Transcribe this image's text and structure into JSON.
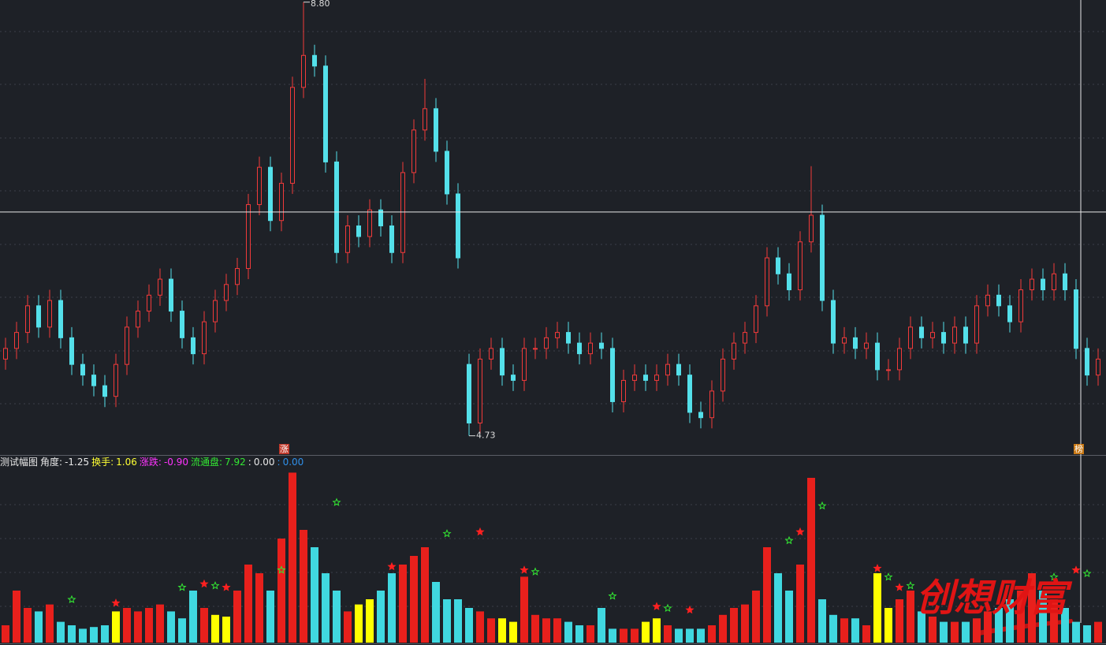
{
  "chart_data": [
    {
      "type": "candlestick",
      "open": [
        5.45,
        5.55,
        5.7,
        5.95,
        5.75,
        6.0,
        5.65,
        5.4,
        5.3,
        5.2,
        5.1,
        5.4,
        5.75,
        5.9,
        6.05,
        6.2,
        5.9,
        5.65,
        5.5,
        5.8,
        6.0,
        6.15,
        6.3,
        6.9,
        7.25,
        6.75,
        7.1,
        8.0,
        8.3,
        8.2,
        7.3,
        6.45,
        6.7,
        6.6,
        6.85,
        6.7,
        6.45,
        7.2,
        7.6,
        7.8,
        7.4,
        7.0,
        5.4,
        4.85,
        5.45,
        5.55,
        5.3,
        5.25,
        5.55,
        5.55,
        5.65,
        5.7,
        5.6,
        5.5,
        5.6,
        5.55,
        5.05,
        5.25,
        5.3,
        5.25,
        5.3,
        5.4,
        5.3,
        4.95,
        4.9,
        5.15,
        5.45,
        5.6,
        5.7,
        5.95,
        6.4,
        6.25,
        6.1,
        6.55,
        6.8,
        6.0,
        5.6,
        5.65,
        5.55,
        5.6,
        5.35,
        5.35,
        5.55,
        5.75,
        5.65,
        5.7,
        5.6,
        5.75,
        5.6,
        5.95,
        6.05,
        5.95,
        5.8,
        6.1,
        6.2,
        6.1,
        6.25,
        6.1,
        5.55,
        5.3
      ],
      "high": [
        5.65,
        5.8,
        6.05,
        6.05,
        6.1,
        6.1,
        5.75,
        5.5,
        5.4,
        5.3,
        5.5,
        5.85,
        6.0,
        6.15,
        6.3,
        6.3,
        6.0,
        5.75,
        5.9,
        6.1,
        6.25,
        6.4,
        7.0,
        7.35,
        7.35,
        7.2,
        8.1,
        8.8,
        8.4,
        8.3,
        7.4,
        6.8,
        6.8,
        6.95,
        6.95,
        6.8,
        7.3,
        7.7,
        8.08,
        7.9,
        7.5,
        7.1,
        5.5,
        5.55,
        5.65,
        5.65,
        5.4,
        5.65,
        5.65,
        5.75,
        5.8,
        5.8,
        5.7,
        5.7,
        5.7,
        5.65,
        5.35,
        5.4,
        5.4,
        5.4,
        5.5,
        5.5,
        5.4,
        5.05,
        5.25,
        5.55,
        5.7,
        5.8,
        6.05,
        6.5,
        6.5,
        6.35,
        6.65,
        7.26,
        6.9,
        6.1,
        5.75,
        5.75,
        5.7,
        5.7,
        5.45,
        5.65,
        5.85,
        5.85,
        5.8,
        5.8,
        5.85,
        5.85,
        6.05,
        6.15,
        6.15,
        6.05,
        6.2,
        6.3,
        6.3,
        6.35,
        6.35,
        6.2,
        5.65,
        5.55
      ],
      "low": [
        5.35,
        5.45,
        5.6,
        5.65,
        5.65,
        5.55,
        5.3,
        5.2,
        5.1,
        5.0,
        5.0,
        5.3,
        5.65,
        5.8,
        5.95,
        5.8,
        5.55,
        5.4,
        5.4,
        5.7,
        5.9,
        6.05,
        6.2,
        6.8,
        6.65,
        6.65,
        7.0,
        7.9,
        8.1,
        7.2,
        6.35,
        6.35,
        6.5,
        6.5,
        6.6,
        6.35,
        6.35,
        7.1,
        7.5,
        7.3,
        6.9,
        6.3,
        4.73,
        4.75,
        5.35,
        5.2,
        5.15,
        5.15,
        5.45,
        5.45,
        5.55,
        5.5,
        5.4,
        5.4,
        5.45,
        4.95,
        4.95,
        5.15,
        5.15,
        5.15,
        5.2,
        5.2,
        4.85,
        4.8,
        4.8,
        5.05,
        5.35,
        5.5,
        5.6,
        5.85,
        6.15,
        6.0,
        6.0,
        6.45,
        5.9,
        5.5,
        5.5,
        5.45,
        5.45,
        5.25,
        5.25,
        5.25,
        5.45,
        5.55,
        5.55,
        5.5,
        5.5,
        5.5,
        5.5,
        5.85,
        5.85,
        5.7,
        5.7,
        6.0,
        6.0,
        6.0,
        6.0,
        5.45,
        5.2,
        5.2
      ],
      "close": [
        5.55,
        5.7,
        5.95,
        5.75,
        6.0,
        5.65,
        5.4,
        5.3,
        5.2,
        5.1,
        5.4,
        5.75,
        5.9,
        6.05,
        6.2,
        5.9,
        5.65,
        5.5,
        5.8,
        6.0,
        6.15,
        6.3,
        6.9,
        7.25,
        6.75,
        7.1,
        8.0,
        8.3,
        8.2,
        7.3,
        6.45,
        6.7,
        6.6,
        6.85,
        6.7,
        6.45,
        7.2,
        7.6,
        7.8,
        7.4,
        7.0,
        6.4,
        4.85,
        5.45,
        5.55,
        5.3,
        5.25,
        5.55,
        5.55,
        5.65,
        5.7,
        5.6,
        5.5,
        5.6,
        5.55,
        5.05,
        5.25,
        5.3,
        5.25,
        5.3,
        5.4,
        5.3,
        4.95,
        4.9,
        5.15,
        5.45,
        5.6,
        5.7,
        5.95,
        6.4,
        6.25,
        6.1,
        6.55,
        6.8,
        6.0,
        5.6,
        5.65,
        5.55,
        5.6,
        5.35,
        5.35,
        5.55,
        5.75,
        5.65,
        5.7,
        5.6,
        5.75,
        5.6,
        5.95,
        6.05,
        5.95,
        5.8,
        6.1,
        6.2,
        6.1,
        6.25,
        6.1,
        5.55,
        5.3,
        5.45
      ],
      "up_color": "#f23a3a",
      "down_color": "#54e0ea",
      "ylim": [
        4.55,
        8.82
      ],
      "high_marker": {
        "bar": 27,
        "value": 8.8,
        "label": "8.80"
      },
      "low_marker": {
        "bar": 42,
        "value": 4.73,
        "label": "4.73"
      },
      "crosshair": {
        "bar": 97,
        "price": 6.83
      },
      "annotations": [
        {
          "bar": 25,
          "text": "涨",
          "color": "#c0392b"
        },
        {
          "bar": 97,
          "text": "榜",
          "color": "#c87814"
        }
      ]
    },
    {
      "type": "bar",
      "header": [
        {
          "label": "测试幅图",
          "color": "#e8e8e8"
        },
        {
          "label": "角度:",
          "value": "-1.25",
          "color": "#e8e8e8"
        },
        {
          "label": "换手:",
          "value": "1.06",
          "color": "#ffff33"
        },
        {
          "label": "涨跌:",
          "value": "-0.90",
          "color": "#ff33ff"
        },
        {
          "label": "流通盘:",
          "value": "7.92",
          "color": "#33e833"
        },
        {
          "label": ":",
          "value": "0.00",
          "color": "#e8e8e8"
        },
        {
          "label": ":",
          "value": "0.00",
          "color": "#2f8fe8"
        }
      ],
      "values": [
        10,
        30,
        20,
        18,
        22,
        12,
        10,
        8,
        9,
        10,
        18,
        20,
        18,
        20,
        22,
        18,
        14,
        30,
        20,
        16,
        15,
        30,
        45,
        40,
        30,
        60,
        98,
        65,
        55,
        40,
        30,
        18,
        22,
        25,
        30,
        40,
        45,
        50,
        55,
        35,
        25,
        25,
        20,
        18,
        14,
        14,
        12,
        38,
        16,
        14,
        14,
        12,
        10,
        10,
        20,
        8,
        8,
        8,
        12,
        14,
        10,
        8,
        8,
        8,
        10,
        16,
        20,
        22,
        30,
        55,
        40,
        30,
        45,
        95,
        25,
        16,
        14,
        14,
        10,
        40,
        20,
        25,
        30,
        18,
        15,
        12,
        12,
        12,
        14,
        18,
        20,
        25,
        30,
        40,
        30,
        25,
        20,
        12,
        10,
        12
      ],
      "colors": [
        "#e8201c",
        "#e8201c",
        "#e8201c",
        "#40d8e0",
        "#e8201c",
        "#40d8e0",
        "#40d8e0",
        "#40d8e0",
        "#40d8e0",
        "#40d8e0",
        "#ffff00",
        "#e8201c",
        "#e8201c",
        "#e8201c",
        "#e8201c",
        "#40d8e0",
        "#40d8e0",
        "#40d8e0",
        "#e8201c",
        "#ffff00",
        "#ffff00",
        "#e8201c",
        "#e8201c",
        "#e8201c",
        "#40d8e0",
        "#e8201c",
        "#e8201c",
        "#e8201c",
        "#40d8e0",
        "#40d8e0",
        "#40d8e0",
        "#e8201c",
        "#ffff00",
        "#ffff00",
        "#40d8e0",
        "#40d8e0",
        "#e8201c",
        "#e8201c",
        "#e8201c",
        "#40d8e0",
        "#40d8e0",
        "#40d8e0",
        "#40d8e0",
        "#e8201c",
        "#e8201c",
        "#ffff00",
        "#ffff00",
        "#e8201c",
        "#e8201c",
        "#e8201c",
        "#e8201c",
        "#40d8e0",
        "#40d8e0",
        "#e8201c",
        "#40d8e0",
        "#40d8e0",
        "#e8201c",
        "#e8201c",
        "#ffff00",
        "#ffff00",
        "#e8201c",
        "#40d8e0",
        "#40d8e0",
        "#40d8e0",
        "#e8201c",
        "#e8201c",
        "#e8201c",
        "#e8201c",
        "#e8201c",
        "#e8201c",
        "#40d8e0",
        "#40d8e0",
        "#e8201c",
        "#e8201c",
        "#40d8e0",
        "#40d8e0",
        "#e8201c",
        "#40d8e0",
        "#e8201c",
        "#ffff00",
        "#ffff00",
        "#e8201c",
        "#e8201c",
        "#40d8e0",
        "#e8201c",
        "#40d8e0",
        "#e8201c",
        "#40d8e0",
        "#e8201c",
        "#e8201c",
        "#40d8e0",
        "#40d8e0",
        "#e8201c",
        "#e8201c",
        "#40d8e0",
        "#e8201c",
        "#40d8e0",
        "#40d8e0",
        "#40d8e0",
        "#e8201c"
      ],
      "ylim": [
        0,
        100
      ],
      "stars": [
        {
          "bar": 6,
          "value": 23,
          "color": "#33e833",
          "filled": false
        },
        {
          "bar": 10,
          "value": 21,
          "color": "#ff2020",
          "filled": true
        },
        {
          "bar": 16,
          "value": 30,
          "color": "#33e833",
          "filled": false
        },
        {
          "bar": 18,
          "value": 32,
          "color": "#ff2020",
          "filled": true
        },
        {
          "bar": 19,
          "value": 31,
          "color": "#33e833",
          "filled": false
        },
        {
          "bar": 20,
          "value": 30,
          "color": "#ff2020",
          "filled": true
        },
        {
          "bar": 25,
          "value": 40,
          "color": "#33e833",
          "filled": false
        },
        {
          "bar": 30,
          "value": 79,
          "color": "#33e833",
          "filled": false
        },
        {
          "bar": 35,
          "value": 42,
          "color": "#ff2020",
          "filled": true
        },
        {
          "bar": 40,
          "value": 61,
          "color": "#33e833",
          "filled": false
        },
        {
          "bar": 43,
          "value": 62,
          "color": "#ff2020",
          "filled": true
        },
        {
          "bar": 47,
          "value": 40,
          "color": "#ff2020",
          "filled": true
        },
        {
          "bar": 48,
          "value": 39,
          "color": "#33e833",
          "filled": false
        },
        {
          "bar": 55,
          "value": 25,
          "color": "#33e833",
          "filled": false
        },
        {
          "bar": 59,
          "value": 19,
          "color": "#ff2020",
          "filled": true
        },
        {
          "bar": 60,
          "value": 18,
          "color": "#33e833",
          "filled": false
        },
        {
          "bar": 62,
          "value": 17,
          "color": "#ff2020",
          "filled": true
        },
        {
          "bar": 71,
          "value": 57,
          "color": "#33e833",
          "filled": false
        },
        {
          "bar": 72,
          "value": 62,
          "color": "#ff2020",
          "filled": true
        },
        {
          "bar": 74,
          "value": 77,
          "color": "#33e833",
          "filled": false
        },
        {
          "bar": 79,
          "value": 41,
          "color": "#ff2020",
          "filled": true
        },
        {
          "bar": 80,
          "value": 36,
          "color": "#33e833",
          "filled": false
        },
        {
          "bar": 81,
          "value": 30,
          "color": "#ff2020",
          "filled": true
        },
        {
          "bar": 82,
          "value": 31,
          "color": "#33e833",
          "filled": false
        },
        {
          "bar": 95,
          "value": 36,
          "color": "#33e833",
          "filled": false
        },
        {
          "bar": 97,
          "value": 40,
          "color": "#ff2020",
          "filled": true
        },
        {
          "bar": 98,
          "value": 38,
          "color": "#33e833",
          "filled": false
        }
      ],
      "watermark": "创想财富"
    }
  ]
}
